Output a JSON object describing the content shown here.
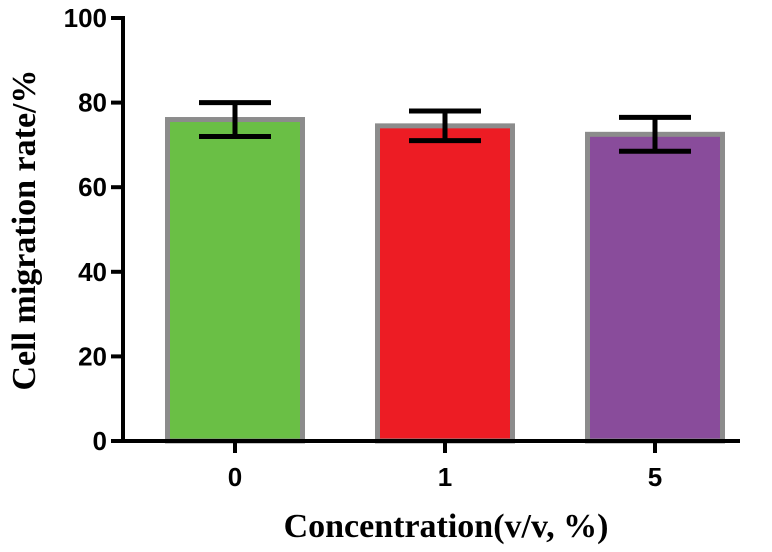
{
  "chart_data": {
    "type": "bar",
    "title": "",
    "xlabel": "Concentration(v/v, %)",
    "ylabel": "Cell migration rate/%",
    "categories": [
      "0",
      "1",
      "5"
    ],
    "values": [
      76,
      74.5,
      72.5
    ],
    "errors": [
      4,
      3.5,
      4
    ],
    "ylim": [
      0,
      100
    ],
    "yticks": [
      0,
      20,
      40,
      60,
      80,
      100
    ],
    "grid": false,
    "colors": [
      "#6abf45",
      "#ed1c24",
      "#894c9b"
    ],
    "edge_color": "#8c8c8c",
    "error_color": "#000000"
  }
}
